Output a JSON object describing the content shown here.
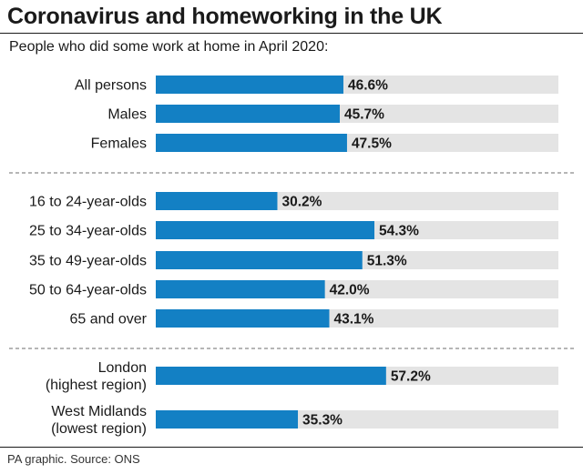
{
  "title": "Coronavirus and homeworking in the UK",
  "subtitle": "People who did some work at home in April 2020:",
  "source": "PA graphic. Source: ONS",
  "colors": {
    "bar": "#1380c4",
    "track": "#e4e4e4",
    "separator": "#8a8a8a"
  },
  "chart_data": {
    "type": "bar",
    "orientation": "horizontal",
    "title": "Coronavirus and homeworking in the UK",
    "subtitle": "People who did some work at home in April 2020:",
    "xlim": [
      0,
      100
    ],
    "grid": false,
    "unit": "%",
    "groups": [
      {
        "categories": [
          [
            "All persons"
          ],
          [
            "Males"
          ],
          [
            "Females"
          ]
        ],
        "values": [
          46.6,
          45.7,
          47.5
        ],
        "value_labels": [
          "46.6%",
          "45.7%",
          "47.5%"
        ]
      },
      {
        "categories": [
          [
            "16 to 24-year-olds"
          ],
          [
            "25 to 34-year-olds"
          ],
          [
            "35 to 49-year-olds"
          ],
          [
            "50 to 64-year-olds"
          ],
          [
            "65 and over"
          ]
        ],
        "values": [
          30.2,
          54.3,
          51.3,
          42.0,
          43.1
        ],
        "value_labels": [
          "30.2%",
          "54.3%",
          "51.3%",
          "42.0%",
          "43.1%"
        ]
      },
      {
        "categories": [
          [
            "London",
            "(highest region)"
          ],
          [
            "West Midlands",
            "(lowest region)"
          ]
        ],
        "values": [
          57.2,
          35.3
        ],
        "value_labels": [
          "57.2%",
          "35.3%"
        ]
      }
    ]
  }
}
